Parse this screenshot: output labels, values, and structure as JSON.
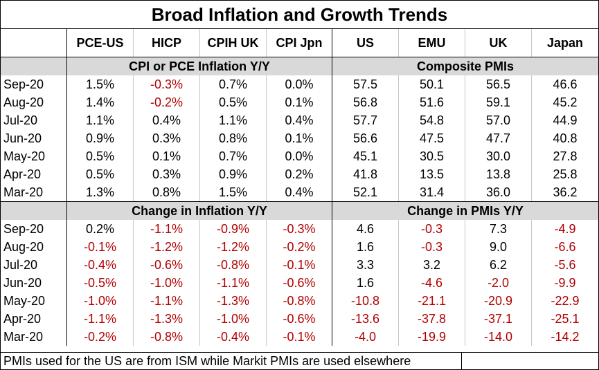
{
  "title": "Broad Inflation and Growth Trends",
  "columns": [
    "PCE-US",
    "HICP",
    "CPIH UK",
    "CPI Jpn",
    "US",
    "EMU",
    "UK",
    "Japan"
  ],
  "section1": {
    "left": "CPI or PCE Inflation Y/Y",
    "right": "Composite PMIs"
  },
  "section2": {
    "left": "Change in Inflation Y/Y",
    "right": "Change in PMIs Y/Y"
  },
  "rows1": [
    {
      "label": "Sep-20",
      "values": [
        "1.5%",
        "-0.3%",
        "0.7%",
        "0.0%",
        "57.5",
        "50.1",
        "56.5",
        "46.6"
      ]
    },
    {
      "label": "Aug-20",
      "values": [
        "1.4%",
        "-0.2%",
        "0.5%",
        "0.1%",
        "56.8",
        "51.6",
        "59.1",
        "45.2"
      ]
    },
    {
      "label": "Jul-20",
      "values": [
        "1.1%",
        "0.4%",
        "1.1%",
        "0.4%",
        "57.7",
        "54.8",
        "57.0",
        "44.9"
      ]
    },
    {
      "label": "Jun-20",
      "values": [
        "0.9%",
        "0.3%",
        "0.8%",
        "0.1%",
        "56.6",
        "47.5",
        "47.7",
        "40.8"
      ]
    },
    {
      "label": "May-20",
      "values": [
        "0.5%",
        "0.1%",
        "0.7%",
        "0.0%",
        "45.1",
        "30.5",
        "30.0",
        "27.8"
      ]
    },
    {
      "label": "Apr-20",
      "values": [
        "0.5%",
        "0.3%",
        "0.9%",
        "0.2%",
        "41.8",
        "13.5",
        "13.8",
        "25.8"
      ]
    },
    {
      "label": "Mar-20",
      "values": [
        "1.3%",
        "0.8%",
        "1.5%",
        "0.4%",
        "52.1",
        "31.4",
        "36.0",
        "36.2"
      ]
    }
  ],
  "rows2": [
    {
      "label": "Sep-20",
      "values": [
        "0.2%",
        "-1.1%",
        "-0.9%",
        "-0.3%",
        "4.6",
        "-0.3",
        "7.3",
        "-4.9"
      ]
    },
    {
      "label": "Aug-20",
      "values": [
        "-0.1%",
        "-1.2%",
        "-1.2%",
        "-0.2%",
        "1.6",
        "-0.3",
        "9.0",
        "-6.6"
      ]
    },
    {
      "label": "Jul-20",
      "values": [
        "-0.4%",
        "-0.6%",
        "-0.8%",
        "-0.1%",
        "3.3",
        "3.2",
        "6.2",
        "-5.6"
      ]
    },
    {
      "label": "Jun-20",
      "values": [
        "-0.5%",
        "-1.0%",
        "-1.1%",
        "-0.6%",
        "1.6",
        "-4.6",
        "-2.0",
        "-9.9"
      ]
    },
    {
      "label": "May-20",
      "values": [
        "-1.0%",
        "-1.1%",
        "-1.3%",
        "-0.8%",
        "-10.8",
        "-21.1",
        "-20.9",
        "-22.9"
      ]
    },
    {
      "label": "Apr-20",
      "values": [
        "-1.1%",
        "-1.3%",
        "-1.0%",
        "-0.6%",
        "-13.6",
        "-37.8",
        "-37.1",
        "-25.1"
      ]
    },
    {
      "label": "Mar-20",
      "values": [
        "-0.2%",
        "-0.8%",
        "-0.4%",
        "-0.1%",
        "-4.0",
        "-19.9",
        "-14.0",
        "-14.2"
      ]
    }
  ],
  "footer": "PMIs used for the US are from ISM while Markit PMIs are used elsewhere",
  "colors": {
    "negative": "#b00000",
    "header_fill": "#d9d9d9"
  }
}
